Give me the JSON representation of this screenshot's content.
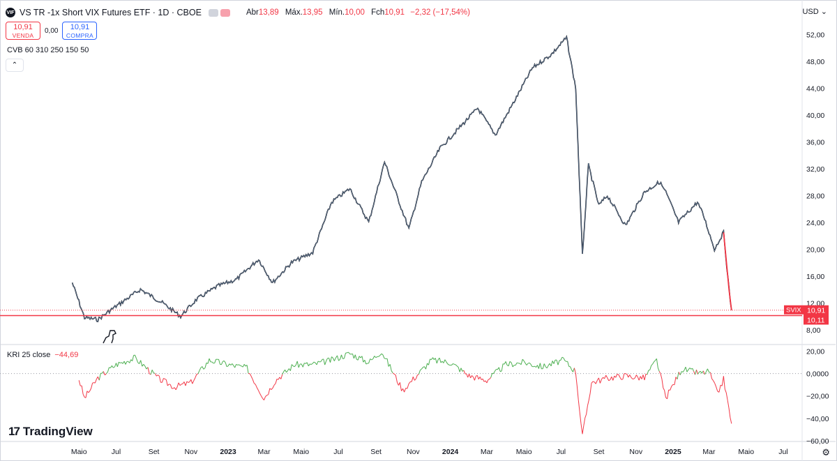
{
  "header": {
    "logo_text": "VIF",
    "title": "VS TR -1x Short VIX Futures ETF · 1D · CBOE",
    "ohlc": [
      {
        "label": "Abr",
        "value": "13,89"
      },
      {
        "label": "Máx.",
        "value": "13,95"
      },
      {
        "label": "Mín.",
        "value": "10,00"
      },
      {
        "label": "Fch",
        "value": "10,91"
      },
      {
        "label": "",
        "value": "−2,32 (−17,54%)"
      }
    ]
  },
  "trade": {
    "sell_price": "10,91",
    "sell_label": "VENDA",
    "spread": "0,00",
    "buy_price": "10,91",
    "buy_label": "COMPRA"
  },
  "indicator_main": "CVB 60 310 250 150 50",
  "currency": "USD",
  "price_axis": [
    "52,00",
    "48,00",
    "44,00",
    "40,00",
    "36,00",
    "32,00",
    "28,00",
    "24,00",
    "20,00",
    "16,00",
    "12,00",
    "8,00"
  ],
  "symbol_tag": "SVIX",
  "last_price_label": "10,91",
  "line_price_label": "10,11",
  "osc_label": "KRI 25 close",
  "osc_value": "−44,69",
  "osc_axis": [
    "20,00",
    "0,0000",
    "−20,00",
    "−40,00",
    "−60,00"
  ],
  "time_axis": [
    "Maio",
    "Jul",
    "Set",
    "Nov",
    "2023",
    "Mar",
    "Maio",
    "Jul",
    "Set",
    "Nov",
    "2024",
    "Mar",
    "Maio",
    "Jul",
    "Set",
    "Nov",
    "2025",
    "Mar",
    "Maio",
    "Jul"
  ],
  "brand": "TradingView",
  "colors": {
    "up": "#089981",
    "down": "#f23645",
    "highlight": "#ffeb3b",
    "candle": "#131722",
    "accent": "#2962ff"
  },
  "chart_data": [
    {
      "type": "line",
      "series": [
        {
          "x": [
            "2022-04-20",
            "2022-05-10",
            "2022-06-01",
            "2022-06-20",
            "2022-08-10",
            "2022-09-15",
            "2022-10-15",
            "2022-11-10",
            "2022-12-15",
            "2023-01-15",
            "2023-02-20",
            "2023-03-15",
            "2023-04-15",
            "2023-05-20",
            "2023-06-20",
            "2023-07-20",
            "2023-08-20",
            "2023-09-15",
            "2023-10-25",
            "2023-11-15",
            "2023-12-15",
            "2024-01-15",
            "2024-02-15",
            "2024-03-15",
            "2024-04-15",
            "2024-05-15",
            "2024-06-15",
            "2024-07-10",
            "2024-07-25",
            "2024-08-05",
            "2024-08-15",
            "2024-09-01",
            "2024-09-15",
            "2024-10-15",
            "2024-11-15",
            "2024-12-10",
            "2024-12-20",
            "2025-01-10",
            "2025-02-10",
            "2025-02-20",
            "2025-03-10",
            "2025-03-25",
            "2025-04-03",
            "2025-04-07"
          ],
          "values": [
            15.0,
            9.8,
            9.5,
            10.8,
            14.0,
            12.0,
            10.0,
            12.5,
            14.5,
            15.5,
            18.5,
            15.0,
            18.0,
            19.5,
            27.0,
            29.0,
            24.0,
            33.0,
            23.0,
            30.0,
            35.0,
            38.0,
            41.0,
            37.0,
            42.0,
            47.0,
            49.0,
            51.5,
            44.0,
            19.0,
            32.5,
            26.5,
            28.0,
            23.5,
            28.5,
            30.0,
            28.5,
            24.0,
            27.0,
            25.0,
            20.0,
            22.5,
            13.89,
            10.91
          ]
        }
      ],
      "ylim": [
        6,
        54
      ]
    },
    {
      "type": "line",
      "series": [
        {
          "name": "KRI 25 close",
          "x": [
            "2022-05-01",
            "2022-05-10",
            "2022-06-01",
            "2022-07-01",
            "2022-08-01",
            "2022-09-10",
            "2022-10-05",
            "2022-11-01",
            "2022-12-01",
            "2023-01-01",
            "2023-02-01",
            "2023-03-01",
            "2023-03-20",
            "2023-04-20",
            "2023-05-20",
            "2023-06-20",
            "2023-07-20",
            "2023-08-20",
            "2023-09-10",
            "2023-10-15",
            "2023-11-01",
            "2023-12-01",
            "2024-01-01",
            "2024-02-01",
            "2024-03-01",
            "2024-04-01",
            "2024-05-01",
            "2024-06-01",
            "2024-07-05",
            "2024-07-25",
            "2024-08-05",
            "2024-08-20",
            "2024-09-15",
            "2024-10-15",
            "2024-11-15",
            "2024-12-05",
            "2024-12-20",
            "2025-01-15",
            "2025-02-15",
            "2025-03-01",
            "2025-03-15",
            "2025-03-25",
            "2025-04-07"
          ],
          "values": [
            -5,
            -22,
            -4,
            8,
            14,
            -5,
            -12,
            -8,
            12,
            8,
            5,
            -22,
            -6,
            8,
            8,
            12,
            18,
            10,
            20,
            -15,
            -5,
            12,
            10,
            -2,
            -6,
            8,
            10,
            6,
            12,
            2,
            -56,
            -8,
            -4,
            -2,
            -4,
            12,
            -22,
            4,
            0,
            2,
            -18,
            -5,
            -44.69
          ]
        }
      ],
      "ylim": [
        -60,
        24
      ]
    }
  ]
}
